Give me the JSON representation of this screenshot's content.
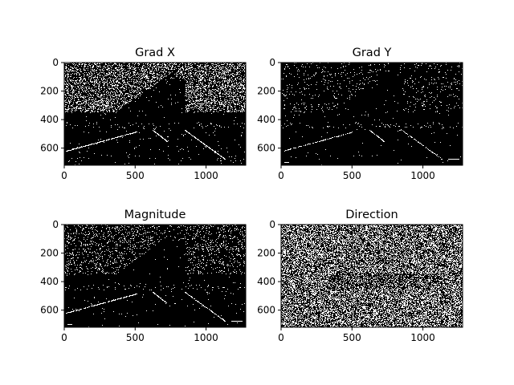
{
  "chart_data": [
    {
      "type": "heatmap",
      "title": "Grad X",
      "xlim": [
        0,
        1280
      ],
      "ylim": [
        720,
        0
      ],
      "x_ticks": [
        "0",
        "500",
        "1000"
      ],
      "y_ticks": [
        "0",
        "200",
        "400",
        "600"
      ],
      "colormap": "binary (white = 1, black = 0)",
      "pattern": "gradx"
    },
    {
      "type": "heatmap",
      "title": "Grad Y",
      "xlim": [
        0,
        1280
      ],
      "ylim": [
        720,
        0
      ],
      "x_ticks": [
        "0",
        "500",
        "1000"
      ],
      "y_ticks": [
        "0",
        "200",
        "400",
        "600"
      ],
      "colormap": "binary (white = 1, black = 0)",
      "pattern": "grady"
    },
    {
      "type": "heatmap",
      "title": "Magnitude",
      "xlim": [
        0,
        1280
      ],
      "ylim": [
        720,
        0
      ],
      "x_ticks": [
        "0",
        "500",
        "1000"
      ],
      "y_ticks": [
        "0",
        "200",
        "400",
        "600"
      ],
      "colormap": "binary (white = 1, black = 0)",
      "pattern": "mag"
    },
    {
      "type": "heatmap",
      "title": "Direction",
      "xlim": [
        0,
        1280
      ],
      "ylim": [
        720,
        0
      ],
      "x_ticks": [
        "0",
        "500",
        "1000"
      ],
      "y_ticks": [
        "0",
        "200",
        "400",
        "600"
      ],
      "colormap": "binary (white = 1, black = 0)",
      "pattern": "dir"
    }
  ],
  "colors": {
    "background": "#ffffff",
    "pixel_on": "#ffffff",
    "pixel_off": "#000000",
    "text": "#000000"
  }
}
